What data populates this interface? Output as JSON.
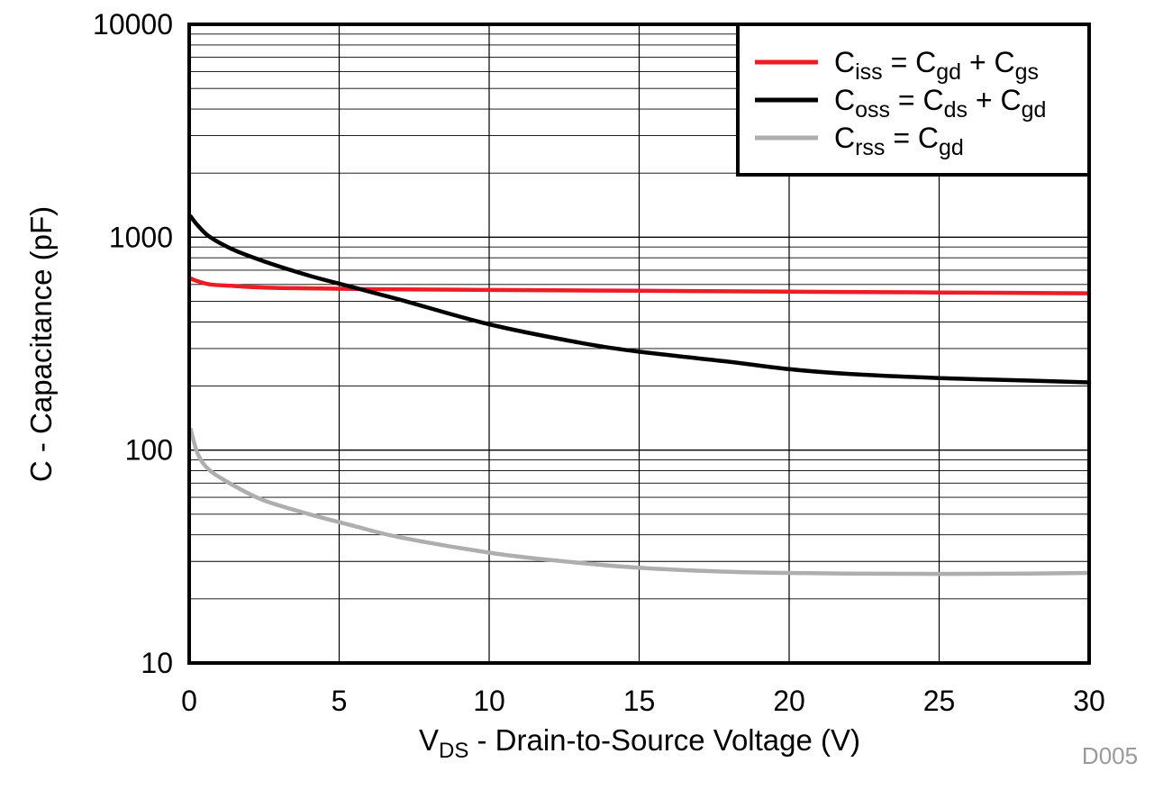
{
  "chart_data": {
    "type": "line",
    "xlabel_main": "V",
    "xlabel_sub": "DS",
    "xlabel_rest": " - Drain-to-Source Voltage (V)",
    "ylabel": "C - Capacitance (pF)",
    "xlim": [
      0,
      30
    ],
    "ylim": [
      10,
      10000
    ],
    "yscale": "log",
    "grid": true,
    "legend_position": "top-right",
    "x_ticks": [
      "0",
      "5",
      "10",
      "15",
      "20",
      "25",
      "30"
    ],
    "y_ticks": [
      "10",
      "100",
      "1000",
      "10000"
    ],
    "figure_code": "D005",
    "series": [
      {
        "name": "Ciss = Cgd + Cgs",
        "legend": [
          {
            "t": "C",
            "sub": false
          },
          {
            "t": "iss",
            "sub": true
          },
          {
            "t": " = C",
            "sub": false
          },
          {
            "t": "gd",
            "sub": true
          },
          {
            "t": " + C",
            "sub": false
          },
          {
            "t": "gs",
            "sub": true
          }
        ],
        "color": "#ee1c25",
        "x": [
          0.05,
          0.3,
          0.7,
          1.5,
          2.5,
          4,
          6,
          10,
          15,
          20,
          25,
          30
        ],
        "y": [
          640,
          620,
          600,
          590,
          580,
          575,
          570,
          565,
          560,
          555,
          550,
          545
        ]
      },
      {
        "name": "Coss = Cds + Cgd",
        "legend": [
          {
            "t": "C",
            "sub": false
          },
          {
            "t": "oss",
            "sub": true
          },
          {
            "t": " = C",
            "sub": false
          },
          {
            "t": "ds",
            "sub": true
          },
          {
            "t": " + C",
            "sub": false
          },
          {
            "t": "gd",
            "sub": true
          }
        ],
        "color": "#000000",
        "x": [
          0.05,
          0.3,
          0.7,
          1.5,
          2.5,
          4,
          5.5,
          7,
          10,
          13,
          15,
          18,
          20,
          22,
          25,
          28,
          30
        ],
        "y": [
          1250,
          1130,
          1000,
          870,
          770,
          660,
          580,
          510,
          390,
          320,
          290,
          260,
          240,
          228,
          218,
          212,
          208
        ]
      },
      {
        "name": "Crss = Cgd",
        "legend": [
          {
            "t": "C",
            "sub": false
          },
          {
            "t": "rss",
            "sub": true
          },
          {
            "t": " = C",
            "sub": false
          },
          {
            "t": "gd",
            "sub": true
          }
        ],
        "color": "#aeaeae",
        "x": [
          0.05,
          0.3,
          0.7,
          1.5,
          2.5,
          4,
          5.5,
          7,
          10,
          12,
          15,
          18,
          20,
          22,
          25,
          28,
          30
        ],
        "y": [
          125,
          95,
          80,
          68,
          58,
          50,
          44,
          39,
          33,
          30.5,
          28,
          26.8,
          26.5,
          26.3,
          26.2,
          26.3,
          26.5
        ]
      }
    ]
  }
}
